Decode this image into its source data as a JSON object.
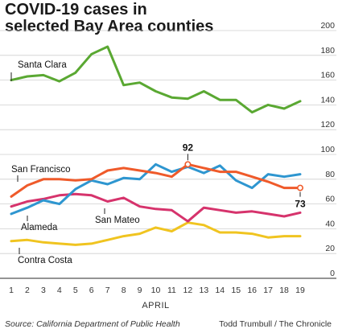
{
  "title_lines": [
    "COVID-19 cases in",
    "selected Bay Area counties"
  ],
  "source": "Source: California Department of Public Health",
  "credit": "Todd Trumbull / The Chronicle",
  "chart_data": {
    "type": "line",
    "xlabel": "APRIL",
    "ylabel": "",
    "x": [
      1,
      2,
      3,
      4,
      5,
      6,
      7,
      8,
      9,
      10,
      11,
      12,
      13,
      14,
      15,
      16,
      17,
      18,
      19
    ],
    "ylim": [
      0,
      200
    ],
    "yticks": [
      0,
      20,
      40,
      60,
      80,
      100,
      120,
      140,
      160,
      180,
      200
    ],
    "grid": true,
    "series": [
      {
        "name": "Santa Clara",
        "color": "#5aa832",
        "values": [
          160,
          163,
          164,
          159,
          166,
          181,
          187,
          156,
          158,
          151,
          146,
          145,
          151,
          144,
          144,
          134,
          140,
          137,
          143
        ]
      },
      {
        "name": "San Francisco",
        "color": "#ef5a2a",
        "values": [
          66,
          75,
          80,
          80,
          79,
          80,
          87,
          89,
          87,
          85,
          82,
          92,
          89,
          86,
          86,
          82,
          78,
          73,
          73
        ]
      },
      {
        "name": "Alameda",
        "color": "#2e96d0",
        "values": [
          52,
          57,
          63,
          60,
          72,
          79,
          76,
          81,
          80,
          92,
          86,
          90,
          85,
          91,
          79,
          73,
          84,
          82,
          84
        ]
      },
      {
        "name": "San Mateo",
        "color": "#d6336c",
        "values": [
          58,
          62,
          64,
          67,
          68,
          67,
          62,
          65,
          58,
          56,
          55,
          46,
          57,
          55,
          53,
          54,
          52,
          50,
          53
        ]
      },
      {
        "name": "Contra Costa",
        "color": "#f0c420",
        "values": [
          30,
          31,
          29,
          28,
          27,
          28,
          31,
          34,
          36,
          41,
          38,
          45,
          43,
          37,
          37,
          36,
          33,
          34,
          34
        ]
      }
    ],
    "annotations": [
      {
        "label": "92",
        "series": "San Francisco",
        "x": 12,
        "position": "above"
      },
      {
        "label": "73",
        "series": "San Francisco",
        "x": 19,
        "position": "below"
      }
    ]
  }
}
